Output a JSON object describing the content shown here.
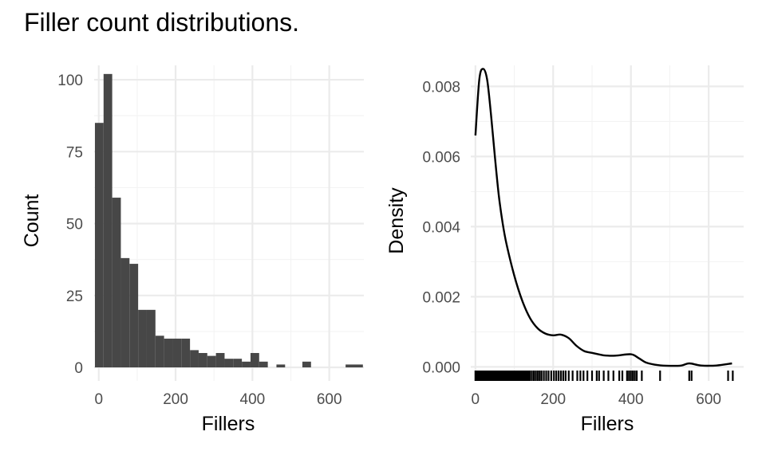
{
  "title": "Filler count distributions.",
  "chart_data": [
    {
      "type": "bar",
      "subtype": "histogram",
      "xlabel": "Fillers",
      "ylabel": "Count",
      "xlim": [
        -12,
        690
      ],
      "ylim": [
        0,
        105
      ],
      "xticks": [
        0,
        200,
        400,
        600
      ],
      "xtick_labels": [
        "0",
        "200",
        "400",
        "600"
      ],
      "yticks": [
        0,
        25,
        50,
        75,
        100
      ],
      "ytick_labels": [
        "0",
        "25",
        "50",
        "75",
        "100"
      ],
      "grid": true,
      "bar_color": "#474747",
      "bins": [
        {
          "x0": -10,
          "x1": 12.5,
          "count": 85
        },
        {
          "x0": 12.5,
          "x1": 35,
          "count": 102
        },
        {
          "x0": 35,
          "x1": 57.5,
          "count": 59
        },
        {
          "x0": 57.5,
          "x1": 80,
          "count": 38
        },
        {
          "x0": 80,
          "x1": 102.5,
          "count": 36
        },
        {
          "x0": 102.5,
          "x1": 125,
          "count": 20
        },
        {
          "x0": 125,
          "x1": 147.5,
          "count": 20
        },
        {
          "x0": 147.5,
          "x1": 170,
          "count": 11
        },
        {
          "x0": 170,
          "x1": 192.5,
          "count": 10
        },
        {
          "x0": 192.5,
          "x1": 215,
          "count": 10
        },
        {
          "x0": 215,
          "x1": 237.5,
          "count": 10
        },
        {
          "x0": 237.5,
          "x1": 260,
          "count": 6
        },
        {
          "x0": 260,
          "x1": 282.5,
          "count": 5
        },
        {
          "x0": 282.5,
          "x1": 305,
          "count": 4
        },
        {
          "x0": 305,
          "x1": 327.5,
          "count": 5
        },
        {
          "x0": 327.5,
          "x1": 350,
          "count": 3
        },
        {
          "x0": 350,
          "x1": 372.5,
          "count": 3
        },
        {
          "x0": 372.5,
          "x1": 395,
          "count": 2
        },
        {
          "x0": 395,
          "x1": 417.5,
          "count": 5
        },
        {
          "x0": 417.5,
          "x1": 440,
          "count": 2
        },
        {
          "x0": 462.5,
          "x1": 485,
          "count": 1
        },
        {
          "x0": 530,
          "x1": 552.5,
          "count": 2
        },
        {
          "x0": 642.5,
          "x1": 687.5,
          "count": 1
        }
      ]
    },
    {
      "type": "line",
      "subtype": "density",
      "xlabel": "Fillers",
      "ylabel": "Density",
      "xlim": [
        -12,
        690
      ],
      "ylim": [
        -0.0004,
        0.0086
      ],
      "xticks": [
        0,
        200,
        400,
        600
      ],
      "xtick_labels": [
        "0",
        "200",
        "400",
        "600"
      ],
      "yticks": [
        0,
        0.002,
        0.004,
        0.006,
        0.008
      ],
      "ytick_labels": [
        "0.000",
        "0.002",
        "0.004",
        "0.006",
        "0.008"
      ],
      "grid": true,
      "x": [
        0,
        10,
        20,
        30,
        40,
        50,
        60,
        70,
        80,
        100,
        120,
        140,
        160,
        180,
        200,
        220,
        240,
        260,
        280,
        300,
        330,
        360,
        400,
        420,
        440,
        470,
        500,
        530,
        550,
        580,
        620,
        660
      ],
      "y": [
        0.0066,
        0.0082,
        0.0085,
        0.0082,
        0.0072,
        0.006,
        0.0049,
        0.0041,
        0.0035,
        0.0026,
        0.0019,
        0.0014,
        0.0011,
        0.00095,
        0.0009,
        0.00092,
        0.00082,
        0.0006,
        0.00045,
        0.0004,
        0.00033,
        0.00032,
        0.00036,
        0.00025,
        0.00012,
        5e-05,
        3e-05,
        4e-05,
        0.0001,
        4e-05,
        4e-05,
        0.0001
      ],
      "rug": [
        0,
        2,
        3,
        5,
        6,
        8,
        9,
        10,
        12,
        13,
        14,
        15,
        16,
        18,
        19,
        20,
        21,
        22,
        23,
        25,
        26,
        27,
        28,
        30,
        31,
        32,
        33,
        35,
        36,
        37,
        38,
        40,
        42,
        43,
        45,
        47,
        48,
        50,
        52,
        54,
        55,
        57,
        59,
        60,
        62,
        64,
        66,
        68,
        70,
        72,
        74,
        76,
        78,
        80,
        82,
        84,
        86,
        88,
        90,
        92,
        94,
        96,
        98,
        100,
        103,
        106,
        109,
        112,
        115,
        118,
        121,
        124,
        127,
        130,
        133,
        136,
        140,
        145,
        150,
        155,
        160,
        165,
        170,
        176,
        182,
        188,
        195,
        202,
        208,
        214,
        220,
        226,
        232,
        240,
        250,
        262,
        270,
        278,
        288,
        300,
        312,
        318,
        330,
        342,
        355,
        370,
        378,
        390,
        395,
        400,
        405,
        410,
        415,
        428,
        475,
        550,
        556,
        650,
        662
      ]
    }
  ]
}
